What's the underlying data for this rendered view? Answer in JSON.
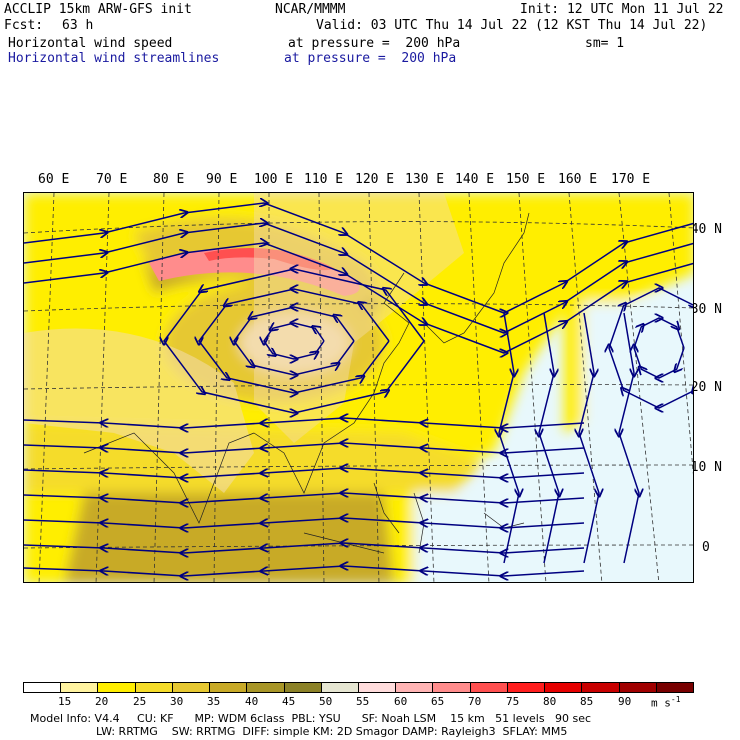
{
  "header": {
    "model_line": "ACCLIP 15km ARW-GFS init",
    "org": "NCAR/MMMM",
    "init": "Init: 12 UTC Mon 11 Jul 22",
    "fcst_label": "Fcst:",
    "fcst_value": "63 h",
    "valid": "Valid: 03 UTC Thu 14 Jul 22 (12 KST Thu 14 Jul 22)",
    "field1_name": "Horizontal wind speed",
    "field1_level": "at pressure =  200 hPa",
    "sm": "sm= 1",
    "field2_name": "Horizontal wind streamlines",
    "field2_level": "at pressure =  200 hPa"
  },
  "lon_labels": [
    "60 E",
    "70 E",
    "80 E",
    "90 E",
    "100 E",
    "110 E",
    "120 E",
    "130 E",
    "140 E",
    "150 E",
    "160 E",
    "170 E"
  ],
  "lat_labels": [
    "40 N",
    "30 N",
    "20 N",
    "10 N",
    "0"
  ],
  "colorbar": {
    "labels": [
      "15",
      "20",
      "25",
      "30",
      "35",
      "40",
      "45",
      "50",
      "55",
      "60",
      "65",
      "70",
      "75",
      "80",
      "85",
      "90"
    ],
    "unit": "m s",
    "unit_exp": "-1",
    "colors": [
      "#ffffff",
      "#fff3a0",
      "#ffee00",
      "#f5dc2a",
      "#e6c832",
      "#c8aa28",
      "#a89628",
      "#8c8228",
      "#e6e6d2",
      "#ffdcdc",
      "#ffb4b4",
      "#ff8c8c",
      "#ff5050",
      "#ff1e1e",
      "#e60000",
      "#c80000",
      "#a00000",
      "#780000"
    ]
  },
  "footer": {
    "line1": "Model Info: V4.4     CU: KF      MP: WDM 6class  PBL: YSU      SF: Noah LSM    15 km   51 levels   90 sec",
    "line2": "LW: RRTMG    SW: RRTMG  DIFF: simple KM: 2D Smagor DAMP: Rayleigh3  SFLAY: MM5"
  },
  "colors": {
    "streamline": "#000080",
    "calm": "#e8f8fc",
    "land": "#f3dcae",
    "jet": "#ff8c8c"
  }
}
